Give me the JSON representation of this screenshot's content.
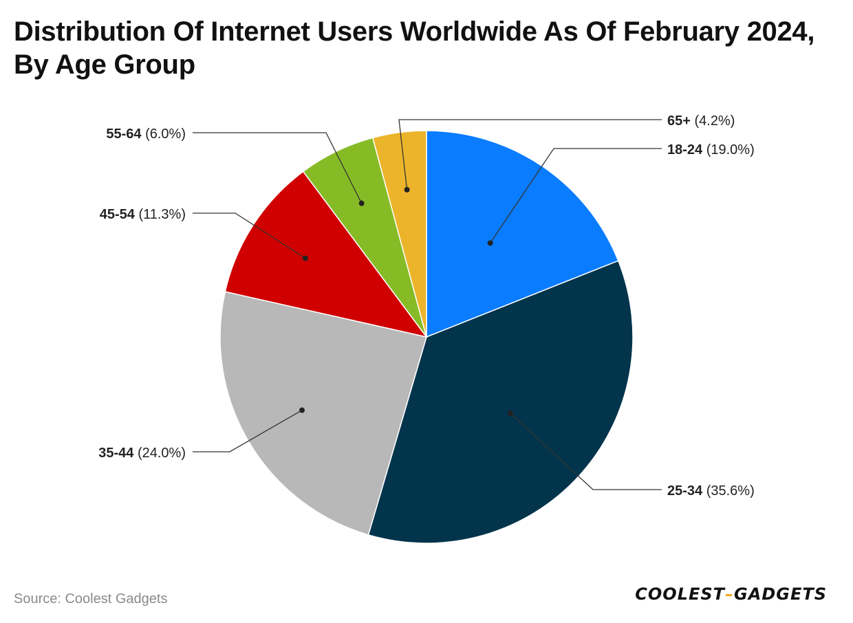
{
  "chart_data": {
    "type": "pie",
    "title": "Distribution Of Internet Users Worldwide As Of February 2024, By Age Group",
    "slices": [
      {
        "label": "18-24",
        "value": 19.0,
        "display": "(19.0%)",
        "color": "#0a7cff"
      },
      {
        "label": "25-34",
        "value": 35.6,
        "display": "(35.6%)",
        "color": "#02344c"
      },
      {
        "label": "35-44",
        "value": 24.0,
        "display": "(24.0%)",
        "color": "#b8b8b8"
      },
      {
        "label": "45-54",
        "value": 11.3,
        "display": "(11.3%)",
        "color": "#d00000"
      },
      {
        "label": "55-64",
        "value": 6.0,
        "display": "(6.0%)",
        "color": "#86bb26"
      },
      {
        "label": "65+",
        "value": 4.2,
        "display": "(4.2%)",
        "color": "#ecb42a"
      }
    ],
    "start_angle": "12 o'clock",
    "direction": "clockwise"
  },
  "footer": {
    "source": "Source: Coolest Gadgets",
    "logo_left": "COOLEST",
    "logo_right": "GADGETS"
  }
}
